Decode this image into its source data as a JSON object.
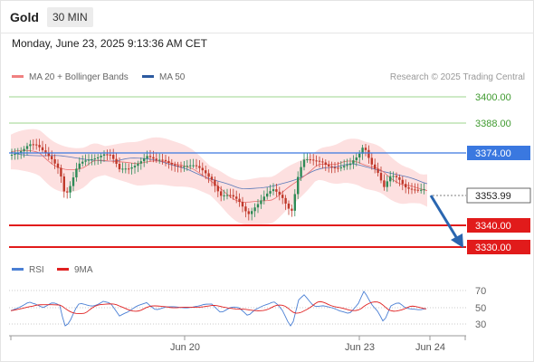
{
  "header": {
    "symbol": "Gold",
    "timeframe": "30 MIN",
    "datetime": "Monday, June 23, 2025 9:13:36 AM CET"
  },
  "legend": {
    "main": [
      {
        "label": "MA 20 + Bollinger Bands",
        "color": "#f08080"
      },
      {
        "label": "MA 50",
        "color": "#2c5aa0"
      }
    ],
    "copyright": "Research © 2025 Trading Central"
  },
  "price_levels": {
    "r3": "3400.00",
    "r2": "3388.00",
    "r1": "3374.00",
    "current": "3353.99",
    "s1": "3340.00",
    "s2": "3330.00"
  },
  "rsi": {
    "legend": [
      {
        "label": "RSI",
        "color": "#4a7fd4"
      },
      {
        "label": "9MA",
        "color": "#e02020"
      }
    ],
    "ticks": [
      "70",
      "50",
      "30"
    ]
  },
  "time_axis": {
    "labels": [
      "Jun 20",
      "Jun 23",
      "Jun 24"
    ]
  },
  "colors": {
    "up": "#2e8b57",
    "down": "#c0392b",
    "resistance_green": "#7cc46a",
    "pivot_blue": "#3a78e0",
    "support_red": "#e11b1b",
    "band_fill": "#fde0e0",
    "arrow": "#2a66b0"
  }
}
